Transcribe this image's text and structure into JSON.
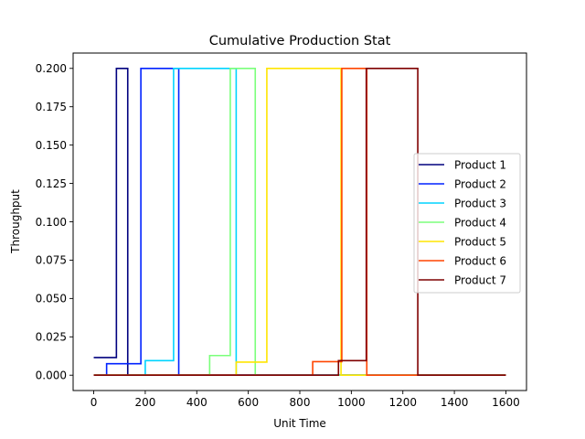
{
  "chart_data": {
    "type": "line",
    "title": "Cumulative Production Stat",
    "xlabel": "Unit Time",
    "ylabel": "Throughput",
    "xlim": [
      -80,
      1680
    ],
    "ylim": [
      -0.01,
      0.21
    ],
    "xticks": [
      0,
      200,
      400,
      600,
      800,
      1000,
      1200,
      1400,
      1600
    ],
    "yticks": [
      0.0,
      0.025,
      0.05,
      0.075,
      0.1,
      0.125,
      0.15,
      0.175,
      0.2
    ],
    "ytick_labels": [
      "0.000",
      "0.025",
      "0.050",
      "0.075",
      "0.100",
      "0.125",
      "0.150",
      "0.175",
      "0.200"
    ],
    "grid": false,
    "legend": "center-right",
    "series": [
      {
        "name": "Product 1",
        "color": "#00007f",
        "points": [
          [
            0,
            0.0115
          ],
          [
            88,
            0.0115
          ],
          [
            88,
            0.2
          ],
          [
            132,
            0.2
          ],
          [
            132,
            0
          ],
          [
            1600,
            0
          ]
        ]
      },
      {
        "name": "Product 2",
        "color": "#0022ff",
        "points": [
          [
            0,
            0
          ],
          [
            50,
            0
          ],
          [
            50,
            0.0075
          ],
          [
            183,
            0.0075
          ],
          [
            183,
            0.2
          ],
          [
            330,
            0.2
          ],
          [
            330,
            0
          ],
          [
            1600,
            0
          ]
        ]
      },
      {
        "name": "Product 3",
        "color": "#00d4ff",
        "points": [
          [
            0,
            0
          ],
          [
            200,
            0
          ],
          [
            200,
            0.0095
          ],
          [
            310,
            0.0095
          ],
          [
            310,
            0.2
          ],
          [
            553,
            0.2
          ],
          [
            553,
            0
          ],
          [
            1600,
            0
          ]
        ]
      },
      {
        "name": "Product 4",
        "color": "#7bff7b",
        "points": [
          [
            0,
            0
          ],
          [
            450,
            0
          ],
          [
            450,
            0.0128
          ],
          [
            530,
            0.0128
          ],
          [
            530,
            0.2
          ],
          [
            627,
            0.2
          ],
          [
            627,
            0
          ],
          [
            1600,
            0
          ]
        ]
      },
      {
        "name": "Product 5",
        "color": "#ffe500",
        "points": [
          [
            0,
            0
          ],
          [
            553,
            0
          ],
          [
            553,
            0.0085
          ],
          [
            672,
            0.0085
          ],
          [
            672,
            0.2
          ],
          [
            960,
            0.2
          ],
          [
            960,
            0
          ],
          [
            1600,
            0
          ]
        ]
      },
      {
        "name": "Product 6",
        "color": "#ff4400",
        "points": [
          [
            0,
            0
          ],
          [
            850,
            0
          ],
          [
            850,
            0.0088
          ],
          [
            963,
            0.0088
          ],
          [
            963,
            0.2
          ],
          [
            1060,
            0.2
          ],
          [
            1060,
            0
          ],
          [
            1600,
            0
          ]
        ]
      },
      {
        "name": "Product 7",
        "color": "#7f0000",
        "points": [
          [
            0,
            0
          ],
          [
            950,
            0
          ],
          [
            950,
            0.0095
          ],
          [
            1058,
            0.0095
          ],
          [
            1058,
            0.2
          ],
          [
            1258,
            0.2
          ],
          [
            1258,
            0
          ],
          [
            1600,
            0
          ]
        ]
      }
    ]
  }
}
